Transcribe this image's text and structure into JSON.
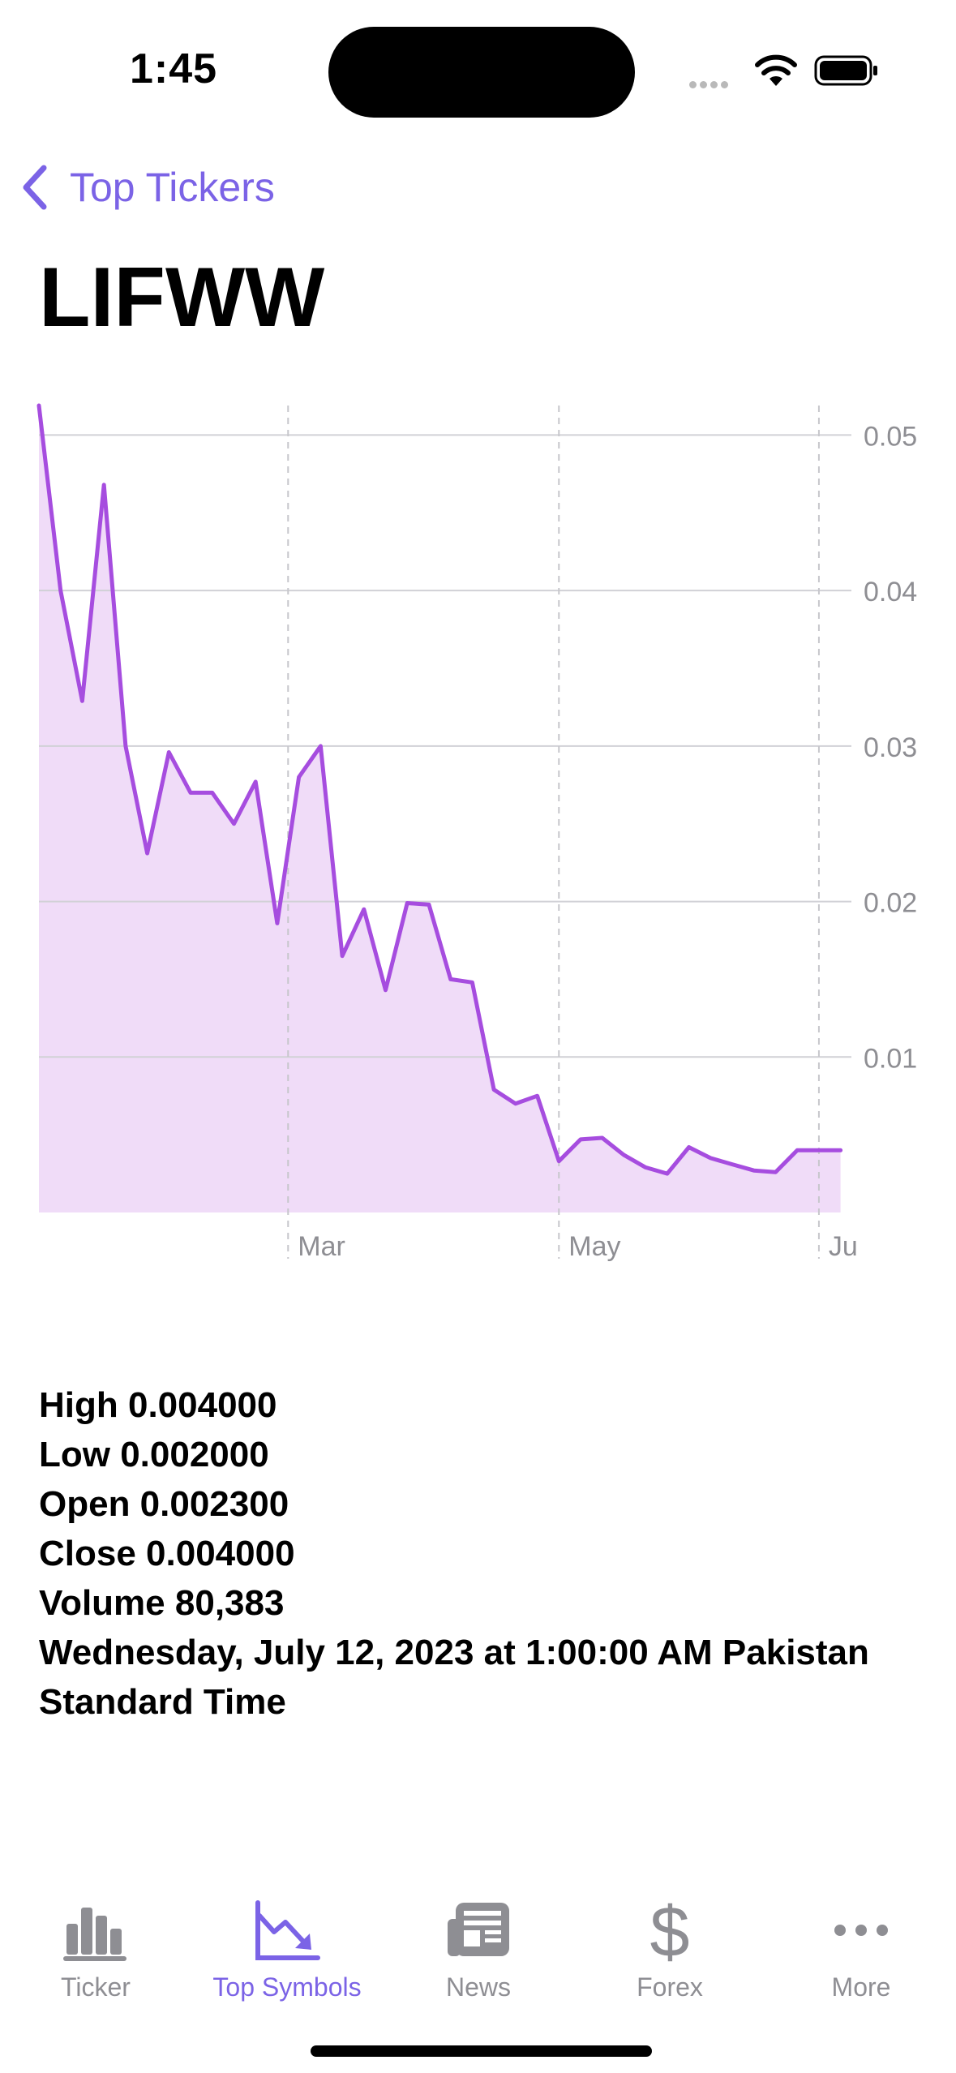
{
  "status_bar": {
    "time": "1:45"
  },
  "nav": {
    "back_label": "Top Tickers",
    "title": "LIFWW"
  },
  "colors": {
    "accent": "#7b63e6",
    "series_line": "#a64ddf",
    "series_fill": "#f0dcf8",
    "inactive": "#8e8e93"
  },
  "chart_data": {
    "type": "area",
    "x_tick_labels": [
      "Mar",
      "May",
      "Ju"
    ],
    "y_tick_labels": [
      "0.05",
      "0.04",
      "0.03",
      "0.02",
      "0.01"
    ],
    "y_ticks": [
      0.05,
      0.04,
      0.03,
      0.02,
      0.01
    ],
    "ylim": [
      0,
      0.0519
    ],
    "x_tick_positions": [
      11.5,
      24,
      36
    ],
    "xlim": [
      0,
      37.5
    ],
    "grid": true,
    "axis_position": "right",
    "values": [
      0.0519,
      0.04,
      0.0329,
      0.0468,
      0.03,
      0.0231,
      0.0296,
      0.027,
      0.027,
      0.025,
      0.0277,
      0.0186,
      0.028,
      0.03,
      0.0165,
      0.0195,
      0.0143,
      0.0199,
      0.0198,
      0.015,
      0.0148,
      0.0079,
      0.007,
      0.0075,
      0.0033,
      0.0047,
      0.0048,
      0.0037,
      0.0029,
      0.0025,
      0.0042,
      0.0035,
      0.0031,
      0.0027,
      0.0026,
      0.004,
      0.004,
      0.004
    ]
  },
  "details": {
    "high": "High 0.004000",
    "low": "Low 0.002000",
    "open": "Open 0.002300",
    "close": "Close 0.004000",
    "volume": "Volume 80,383",
    "timestamp": " Wednesday, July 12, 2023 at 1:00:00 AM Pakistan Standard Time"
  },
  "tabs": [
    {
      "label": "Ticker",
      "icon": "bar-chart-icon",
      "active": false
    },
    {
      "label": "Top Symbols",
      "icon": "chart-down-icon",
      "active": true
    },
    {
      "label": "News",
      "icon": "newspaper-icon",
      "active": false
    },
    {
      "label": "Forex",
      "icon": "dollar-icon",
      "active": false
    },
    {
      "label": "More",
      "icon": "more-dots-icon",
      "active": false
    }
  ]
}
